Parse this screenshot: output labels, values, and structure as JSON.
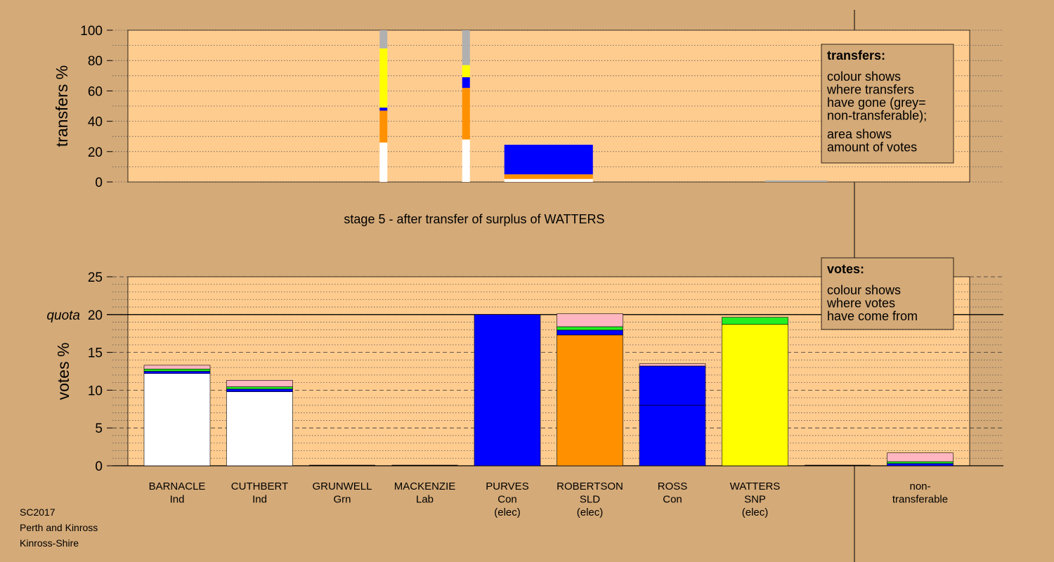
{
  "chart_data": [
    {
      "type": "bar",
      "stacked": true,
      "ylabel": "transfers %",
      "ylim": [
        0,
        100
      ],
      "yticks": [
        0,
        20,
        40,
        60,
        80,
        100
      ],
      "grid": true,
      "caption": "stage 5 - after transfer of surplus of WATTERS",
      "legend": {
        "placement": "top-right",
        "title": "transfers:",
        "lines": [
          "colour shows",
          "where transfers",
          "have gone (grey=",
          "non-transferable);",
          "",
          "area shows",
          "amount of votes"
        ]
      },
      "bars": [
        {
          "column": 2.5,
          "width": "thin",
          "segments": [
            {
              "color": "#ffffff",
              "value": 26
            },
            {
              "color": "#ff9100",
              "value": 21
            },
            {
              "color": "#0000ff",
              "value": 2
            },
            {
              "color": "#ffff00",
              "value": 39
            },
            {
              "color": "#b0b0b0",
              "value": 12
            }
          ]
        },
        {
          "column": 3.5,
          "width": "thin",
          "segments": [
            {
              "color": "#ffffff",
              "value": 28
            },
            {
              "color": "#ff9100",
              "value": 34
            },
            {
              "color": "#0000ff",
              "value": 7
            },
            {
              "color": "#ffff00",
              "value": 8
            },
            {
              "color": "#b0b0b0",
              "value": 23
            }
          ]
        },
        {
          "column": 4.5,
          "width": "wide",
          "segments": [
            {
              "color": "#ffffff",
              "value": 2
            },
            {
              "color": "#ff9100",
              "value": 3
            },
            {
              "color": "#0000ff",
              "value": 19.5
            }
          ]
        },
        {
          "column": 7.5,
          "width": "medium",
          "segments": [
            {
              "color": "#b0b0b0",
              "value": 1
            }
          ]
        }
      ]
    },
    {
      "type": "bar",
      "stacked": true,
      "ylabel": "votes %",
      "ylim": [
        0,
        25
      ],
      "yticks": [
        0,
        5,
        10,
        15,
        20,
        25
      ],
      "quota": {
        "label": "quota",
        "value": 20
      },
      "grid": true,
      "legend": {
        "placement": "top-right",
        "title": "votes:",
        "lines": [
          "colour shows",
          "where votes",
          "have come from"
        ]
      },
      "categories": [
        {
          "name": "BARNACLE",
          "party": "Ind",
          "status": ""
        },
        {
          "name": "CUTHBERT",
          "party": "Ind",
          "status": ""
        },
        {
          "name": "GRUNWELL",
          "party": "Grn",
          "status": ""
        },
        {
          "name": "MACKENZIE",
          "party": "Lab",
          "status": ""
        },
        {
          "name": "PURVES",
          "party": "Con",
          "status": "(elec)"
        },
        {
          "name": "ROBERTSON",
          "party": "SLD",
          "status": "(elec)"
        },
        {
          "name": "ROSS",
          "party": "Con",
          "status": ""
        },
        {
          "name": "WATTERS",
          "party": "SNP",
          "status": "(elec)"
        },
        {
          "name": "",
          "party": "",
          "status": ""
        },
        {
          "name": "non-",
          "party": "transferable",
          "status": ""
        }
      ],
      "stacks": [
        [
          {
            "color": "#ffffff",
            "value": 12.2
          },
          {
            "color": "#0000ff",
            "value": 0.3
          },
          {
            "color": "#22ee22",
            "value": 0.3
          },
          {
            "color": "#ffb6c1",
            "value": 0.5
          }
        ],
        [
          {
            "color": "#ffffff",
            "value": 9.8
          },
          {
            "color": "#0000ff",
            "value": 0.35
          },
          {
            "color": "#22ee22",
            "value": 0.3
          },
          {
            "color": "#ffb6c1",
            "value": 0.85
          }
        ],
        [],
        [],
        [
          {
            "color": "#0000ff",
            "value": 20.0
          }
        ],
        [
          {
            "color": "#ff9100",
            "value": 17.3
          },
          {
            "color": "#0000ff",
            "value": 0.65
          },
          {
            "color": "#22ee22",
            "value": 0.45
          },
          {
            "color": "#ffb6c1",
            "value": 1.7
          }
        ],
        [
          {
            "color": "#0000ff",
            "value": 8.0
          },
          {
            "color": "#0000ff",
            "value": 5.2
          },
          {
            "color": "#ffb6c1",
            "value": 0.3
          }
        ],
        [
          {
            "color": "#ffff00",
            "value": 18.7
          },
          {
            "color": "#22ee22",
            "value": 0.95
          }
        ],
        [],
        [
          {
            "color": "#0000ff",
            "value": 0.3
          },
          {
            "color": "#22ee22",
            "value": 0.25
          },
          {
            "color": "#ffb6c1",
            "value": 1.15
          }
        ]
      ]
    }
  ],
  "footer": {
    "line1": "SC2017",
    "line2": "Perth and Kinross",
    "line3": "Kinross-Shire"
  }
}
